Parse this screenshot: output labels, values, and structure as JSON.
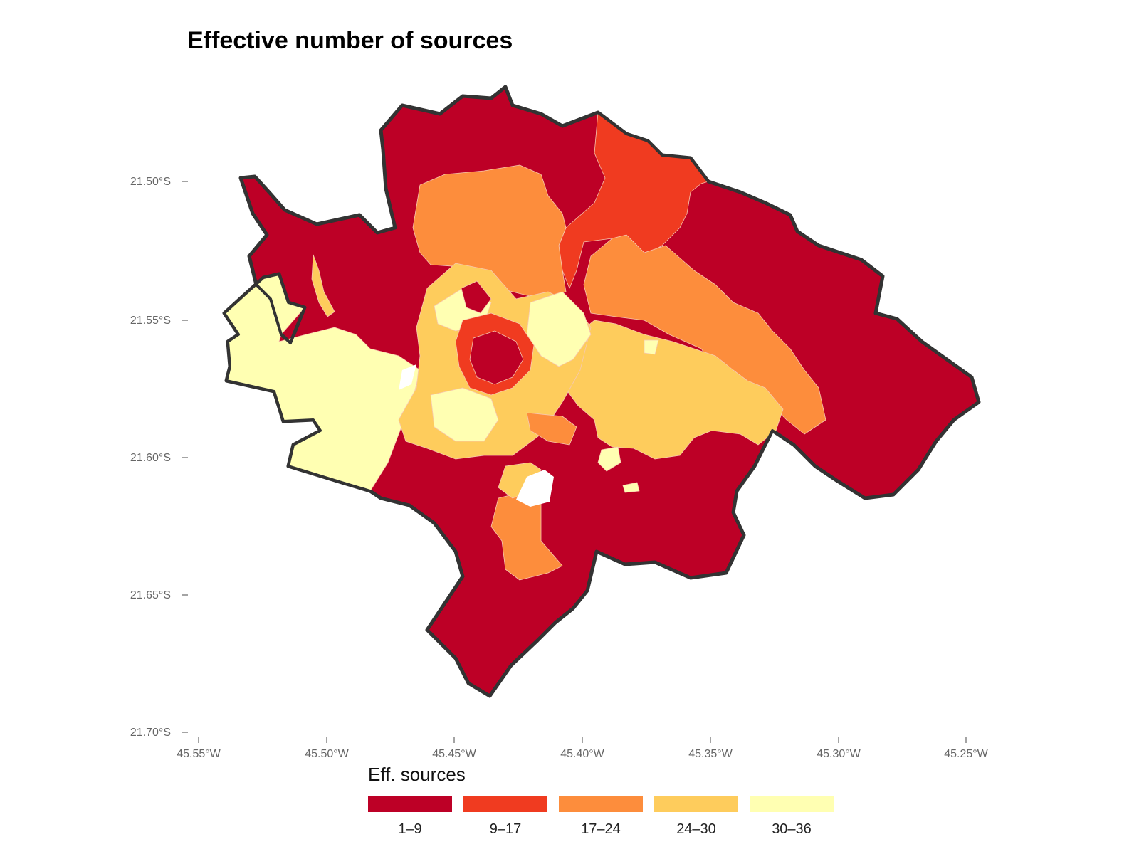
{
  "chart_data": {
    "type": "map",
    "title": "Effective number of sources",
    "y_axis": {
      "ticks": [
        "21.50°S",
        "21.55°S",
        "21.60°S",
        "21.65°S",
        "21.70°S"
      ]
    },
    "x_axis": {
      "ticks": [
        "45.55°W",
        "45.50°W",
        "45.45°W",
        "45.40°W",
        "45.35°W",
        "45.30°W",
        "45.25°W"
      ]
    },
    "legend": {
      "title": "Eff. sources",
      "placement": "bottom",
      "classes": [
        {
          "label": "1–9",
          "color": "#bd0026"
        },
        {
          "label": "9–17",
          "color": "#f03b20"
        },
        {
          "label": "17–24",
          "color": "#fd8d3c"
        },
        {
          "label": "24–30",
          "color": "#fecc5c"
        },
        {
          "label": "30–36",
          "color": "#ffffb2"
        }
      ]
    }
  }
}
